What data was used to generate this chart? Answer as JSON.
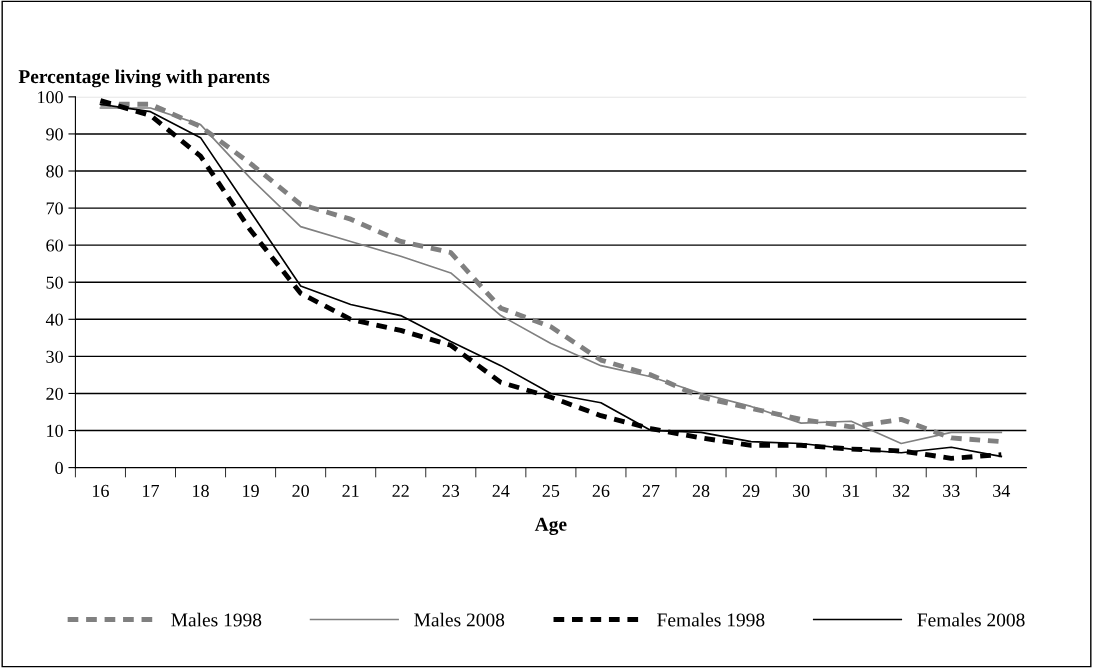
{
  "chart_data": {
    "type": "line",
    "title": "Percentage living with parents",
    "xlabel": "Age",
    "categories": [
      "16",
      "17",
      "18",
      "19",
      "20",
      "21",
      "22",
      "23",
      "24",
      "25",
      "26",
      "27",
      "28",
      "29",
      "30",
      "31",
      "32",
      "33",
      "34"
    ],
    "series": [
      {
        "name": "Males 1998",
        "color": "#808080",
        "line_style": "dashed",
        "values": [
          98,
          98,
          92,
          82,
          71,
          67,
          61,
          58,
          43,
          38,
          29,
          25,
          19,
          16,
          13,
          11,
          13,
          8,
          7
        ]
      },
      {
        "name": "Males 2008",
        "color": "#808080",
        "line_style": "solid",
        "values": [
          97,
          97,
          92.5,
          78,
          65,
          61,
          57,
          52.5,
          41,
          33.5,
          27.5,
          24.5,
          20,
          16.5,
          12,
          12.5,
          6.5,
          9.5,
          9.5
        ]
      },
      {
        "name": "Females 1998",
        "color": "#000000",
        "line_style": "dashed",
        "values": [
          99,
          95,
          84,
          64,
          47,
          40,
          37,
          33,
          23,
          19,
          14,
          10.5,
          8,
          6,
          6,
          5,
          4.5,
          2.5,
          3.5
        ]
      },
      {
        "name": "Females 2008",
        "color": "#000000",
        "line_style": "solid",
        "values": [
          98,
          96,
          89,
          69,
          49,
          44,
          41,
          34,
          27.5,
          20,
          17.5,
          10,
          9.5,
          7,
          6.5,
          5,
          4,
          5.5,
          3
        ]
      }
    ],
    "ylim": [
      0,
      100
    ],
    "yticks": [
      0,
      10,
      20,
      30,
      40,
      50,
      60,
      70,
      80,
      90,
      100
    ],
    "grid": "y",
    "legend": "bottom",
    "marker": "none"
  }
}
